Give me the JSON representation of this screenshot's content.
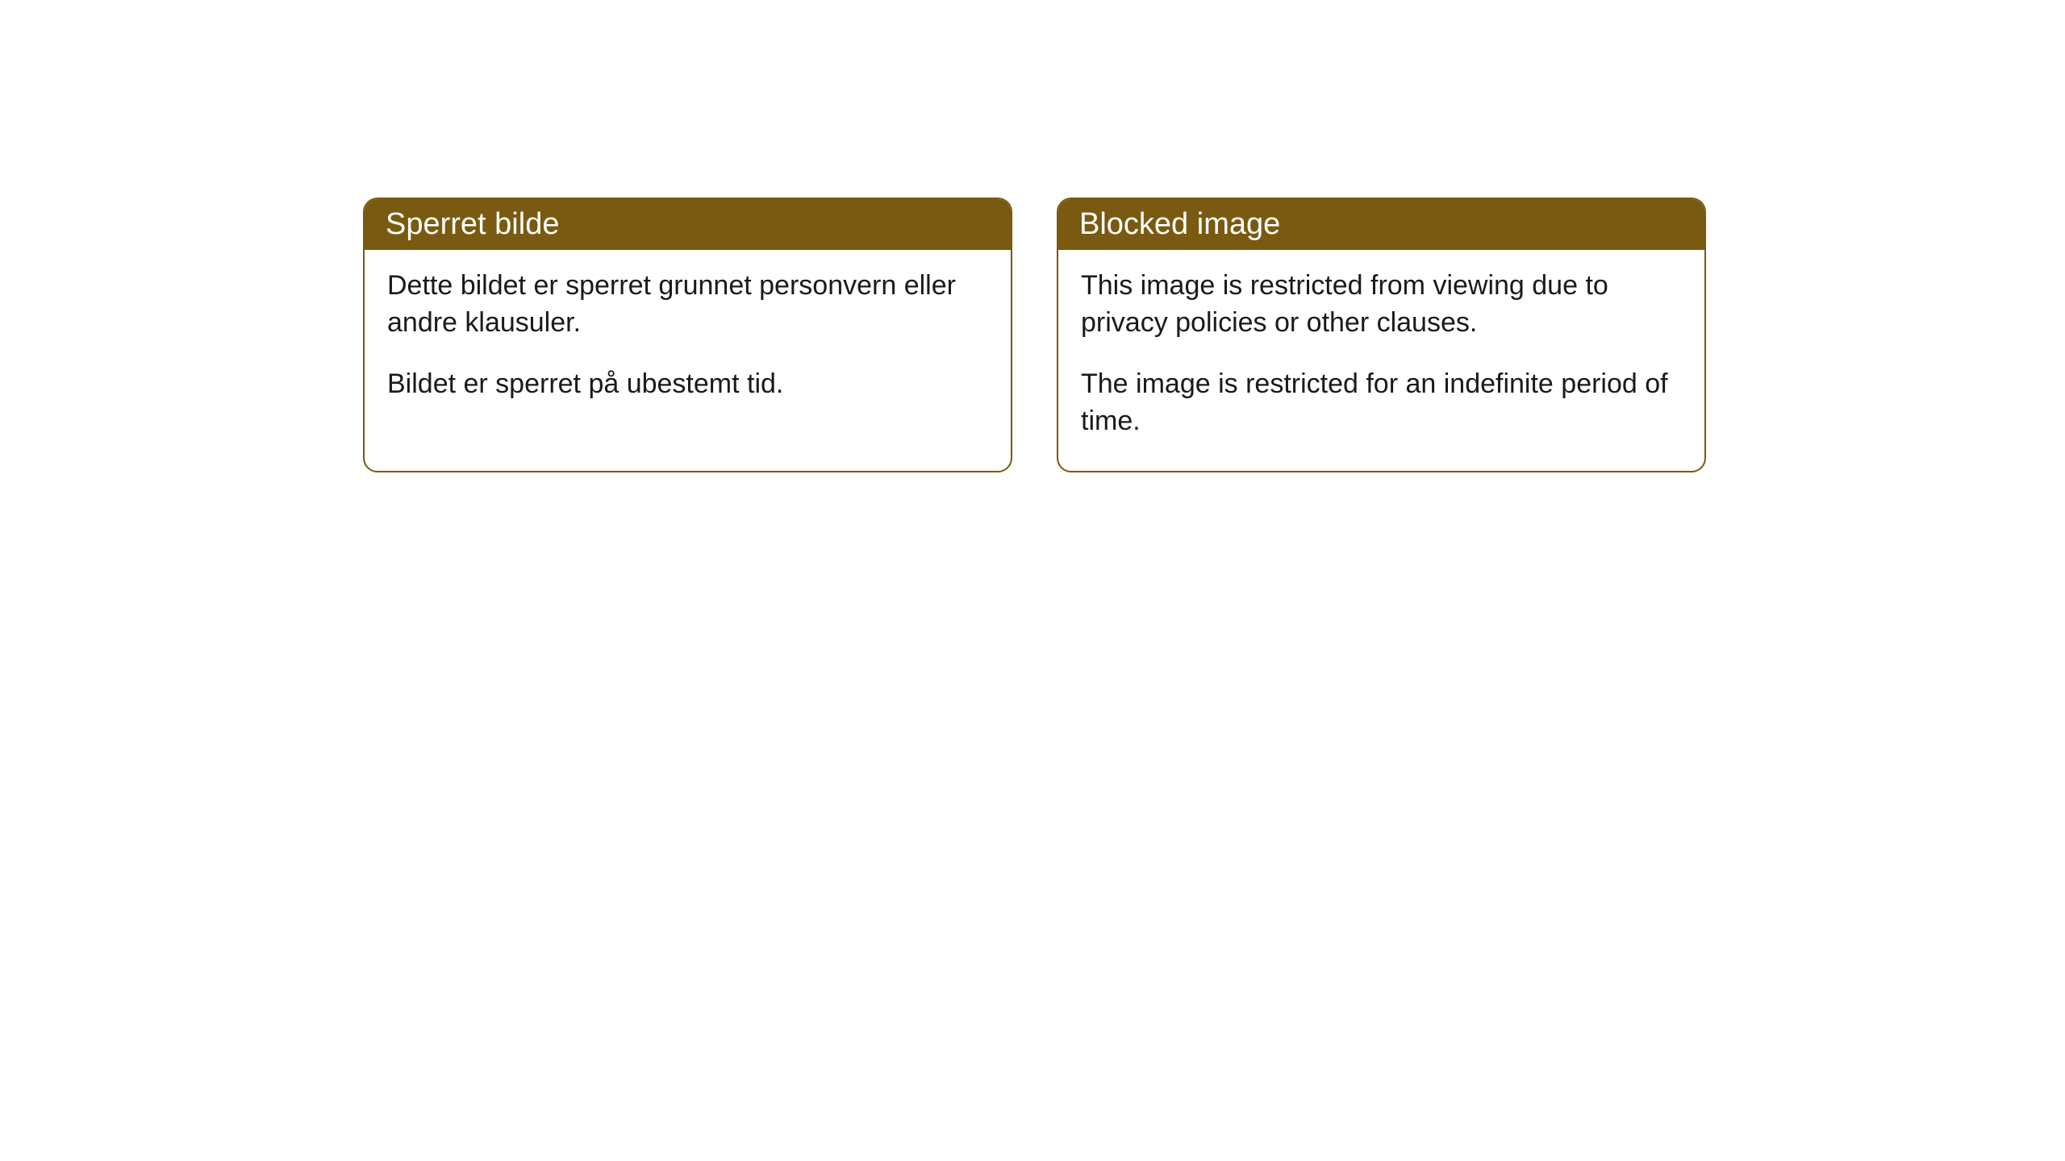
{
  "cards": [
    {
      "header": "Sperret bilde",
      "paragraph1": "Dette bildet er sperret grunnet personvern eller andre klausuler.",
      "paragraph2": "Bildet er sperret på ubestemt tid."
    },
    {
      "header": "Blocked image",
      "paragraph1": "This image is restricted from viewing due to privacy policies or other clauses.",
      "paragraph2": "The image is restricted for an indefinite period of time."
    }
  ],
  "style": {
    "header_bg_color": "#7a5a10",
    "header_text_color": "#ffffff",
    "border_color": "#7a5a10",
    "body_bg_color": "#ffffff",
    "body_text_color": "#1a1a1a",
    "border_radius": 18,
    "header_fontsize": 38,
    "body_fontsize": 34
  }
}
